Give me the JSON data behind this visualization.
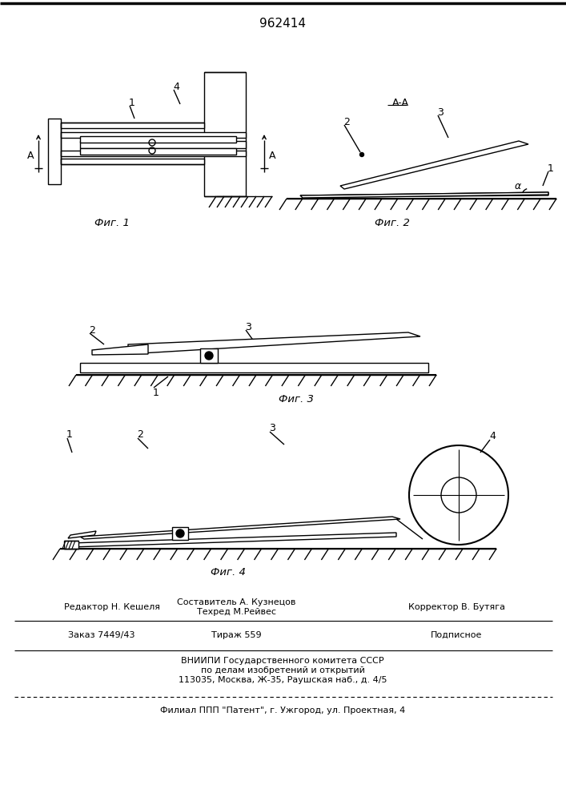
{
  "title": "962414",
  "fig1_caption": "Фиг. 1",
  "fig2_caption": "Фиг. 2",
  "fig3_caption": "Фиг. 3",
  "fig4_caption": "Фиг. 4",
  "footer_editor": "Редактор Н. Кешеля",
  "footer_composer": "Составитель А. Кузнецов",
  "footer_techred": "Техред М.Рейвес",
  "footer_corrector": "Корректор В. Бутяга",
  "footer_order": "Заказ 7449/43",
  "footer_tirazh": "Тираж 559",
  "footer_podp": "Подписное",
  "footer_vniipI": "ВНИИПИ Государственного комитета СССР",
  "footer_po": "по делам изобретений и открытий",
  "footer_addr": "113035, Москва, Ж-35, Раушская наб., д. 4/5",
  "footer_filial": "Филиал ППП \"Патент\", г. Ужгород, ул. Проектная, 4",
  "line_color": "#000000",
  "bg_color": "#ffffff"
}
